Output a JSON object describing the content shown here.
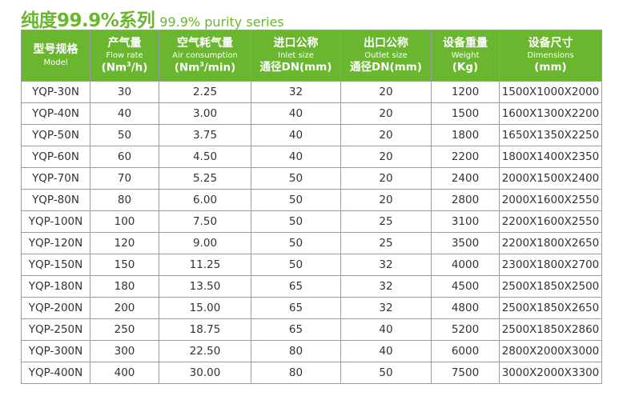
{
  "title": {
    "cn": "纯度99.9%系列",
    "en": "99.9% purity series"
  },
  "table": {
    "headers": [
      {
        "cn": "型号规格",
        "en": "Model",
        "unit": ""
      },
      {
        "cn": "产气量",
        "en": "Flow rate",
        "unit_pre": "(Nm",
        "unit_sup": "3",
        "unit_post": "/h)"
      },
      {
        "cn": "空气耗气量",
        "en": "Air consumption",
        "unit_pre": "(Nm",
        "unit_sup": "3",
        "unit_post": "/min)"
      },
      {
        "cn": "进口公称",
        "en": "Inlet size",
        "unit": "通径DN(mm)"
      },
      {
        "cn": "出口公称",
        "en": "Outlet size",
        "unit": "通径DN(mm)"
      },
      {
        "cn": "设备重量",
        "en": "Weight",
        "unit": "(Kg)"
      },
      {
        "cn": "设备尺寸",
        "en": "Dimensions",
        "unit": "(mm)"
      }
    ],
    "rows": [
      [
        "YQP-30N",
        "30",
        "2.25",
        "32",
        "20",
        "1200",
        "1500X1000X2000"
      ],
      [
        "YQP-40N",
        "40",
        "3.00",
        "40",
        "20",
        "1500",
        "1600X1300X2200"
      ],
      [
        "YQP-50N",
        "50",
        "3.75",
        "40",
        "20",
        "1800",
        "1650X1350X2250"
      ],
      [
        "YQP-60N",
        "60",
        "4.50",
        "40",
        "20",
        "2200",
        "1800X1400X2350"
      ],
      [
        "YQP-70N",
        "70",
        "5.25",
        "50",
        "20",
        "2400",
        "2000X1500X2400"
      ],
      [
        "YQP-80N",
        "80",
        "6.00",
        "50",
        "20",
        "2800",
        "2000X1600X2550"
      ],
      [
        "YQP-100N",
        "100",
        "7.50",
        "50",
        "25",
        "3100",
        "2200X1600X2550"
      ],
      [
        "YQP-120N",
        "120",
        "9.00",
        "50",
        "25",
        "3500",
        "2200X1800X2650"
      ],
      [
        "YQP-150N",
        "150",
        "11.25",
        "50",
        "32",
        "4000",
        "2300X1800X2700"
      ],
      [
        "YQP-180N",
        "180",
        "13.50",
        "65",
        "32",
        "4500",
        "2500X1850X2500"
      ],
      [
        "YQP-200N",
        "200",
        "15.00",
        "65",
        "32",
        "4800",
        "2500X1850X2650"
      ],
      [
        "YQP-250N",
        "250",
        "18.75",
        "65",
        "40",
        "5200",
        "2500X1850X2860"
      ],
      [
        "YQP-300N",
        "300",
        "22.50",
        "80",
        "40",
        "6000",
        "2800X2000X3000"
      ],
      [
        "YQP-400N",
        "400",
        "30.00",
        "80",
        "50",
        "7500",
        "3000X2000X3300"
      ]
    ]
  },
  "colors": {
    "accent_green": "#6ab62f",
    "border_gray": "#9c9c9c",
    "text_dark": "#333333"
  }
}
